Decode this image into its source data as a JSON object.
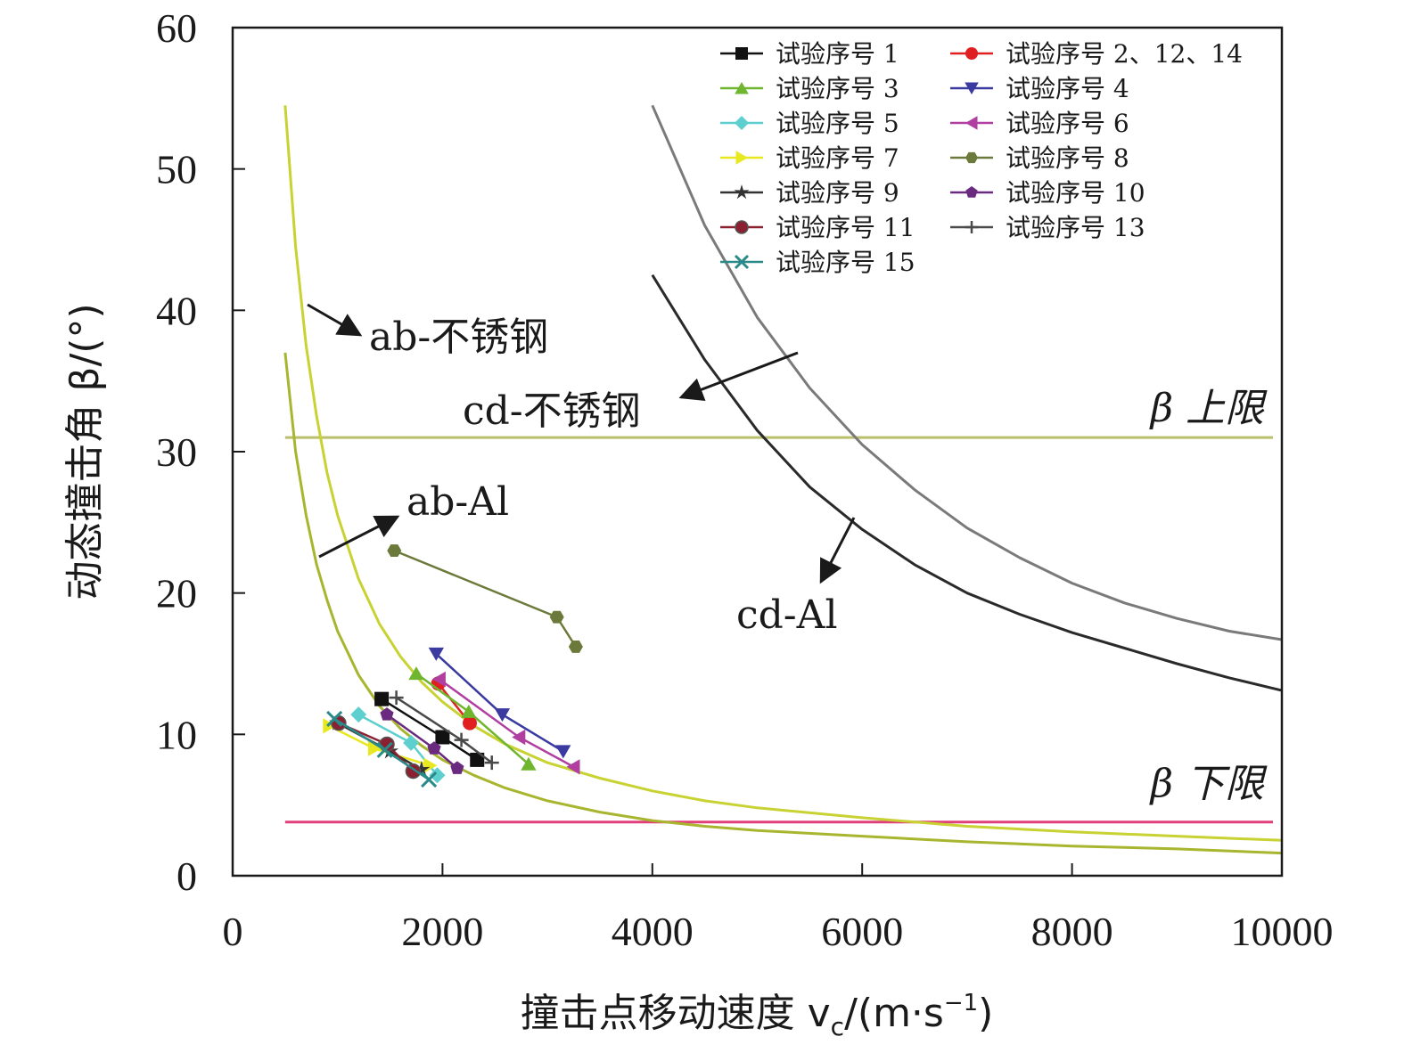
{
  "chart_data": {
    "type": "scatter",
    "xlabel": "撞击点移动速度 v",
    "xlabel_sub": "c",
    "xlabel_unit": "/(m·s",
    "xlabel_sup": "−1",
    "xlabel_close": ")",
    "ylabel": "动态撞击角 β/(°)",
    "xlim": [
      0,
      10000
    ],
    "ylim": [
      0,
      60
    ],
    "xticks": [
      0,
      2000,
      4000,
      6000,
      8000,
      10000
    ],
    "yticks": [
      0,
      10,
      20,
      30,
      40,
      50,
      60
    ],
    "xtick_labels": [
      "0",
      "2000",
      "4000",
      "6000",
      "8000",
      "10000"
    ],
    "ytick_labels": [
      "0",
      "10",
      "20",
      "30",
      "40",
      "50",
      "60"
    ],
    "grid": false,
    "legend_position": "top-right",
    "limits": [
      {
        "label": "β 上限",
        "y": 31,
        "color": "#b9bf6a"
      },
      {
        "label": "β 下限",
        "y": 3.8,
        "color": "#e0407a"
      }
    ],
    "curves": [
      {
        "label": "ab-不锈钢",
        "color": "#c8d232",
        "x": [
          500,
          600,
          700,
          800,
          900,
          1000,
          1200,
          1400,
          1600,
          1800,
          2000,
          2300,
          2600,
          3000,
          3500,
          4000,
          4500,
          5000,
          6000,
          7000,
          8000,
          9000,
          10000
        ],
        "y": [
          54.5,
          44.5,
          37.5,
          32.5,
          28.5,
          25.5,
          21,
          17.8,
          15.5,
          13.7,
          12.3,
          10.6,
          9.3,
          8,
          6.9,
          6,
          5.3,
          4.8,
          4.1,
          3.5,
          3.1,
          2.8,
          2.5
        ]
      },
      {
        "label": "ab-Al",
        "color": "#a8b52e",
        "x": [
          500,
          600,
          700,
          800,
          900,
          1000,
          1200,
          1400,
          1600,
          1800,
          2000,
          2300,
          2600,
          3000,
          3500,
          4000,
          4500,
          5000,
          6000,
          7000,
          8000,
          9000,
          10000
        ],
        "y": [
          37,
          30,
          25.5,
          22,
          19.5,
          17.3,
          14.2,
          12,
          10.4,
          9.2,
          8.2,
          7.1,
          6.2,
          5.3,
          4.5,
          3.9,
          3.5,
          3.2,
          2.8,
          2.4,
          2.1,
          1.9,
          1.6
        ]
      },
      {
        "label": "cd-不锈钢",
        "color": "#7a7a7a",
        "x": [
          4000,
          4500,
          5000,
          5500,
          6000,
          6500,
          7000,
          7500,
          8000,
          8500,
          9000,
          9500,
          10000
        ],
        "y": [
          54.5,
          46,
          39.5,
          34.5,
          30.5,
          27.3,
          24.6,
          22.5,
          20.7,
          19.3,
          18.2,
          17.3,
          16.7
        ]
      },
      {
        "label": "cd-Al",
        "color": "#2a2a2a",
        "x": [
          4000,
          4500,
          5000,
          5500,
          6000,
          6500,
          7000,
          7500,
          8000,
          8500,
          9000,
          9500,
          10000
        ],
        "y": [
          42.5,
          36.5,
          31.5,
          27.5,
          24.5,
          22,
          20,
          18.5,
          17.2,
          16.1,
          15,
          14,
          13.1
        ]
      }
    ],
    "annotations": [
      {
        "text": "ab-不锈钢"
      },
      {
        "text": "cd-不锈钢"
      },
      {
        "text": "ab-Al"
      },
      {
        "text": "cd-Al"
      }
    ],
    "series": [
      {
        "name": "试验序号 1",
        "color": "#111111",
        "marker": "square",
        "x": [
          1420,
          2000,
          2330
        ],
        "y": [
          12.5,
          9.8,
          8.2
        ]
      },
      {
        "name": "试验序号 2、12、14",
        "color": "#e02020",
        "marker": "circle",
        "x": [
          1960,
          2260
        ],
        "y": [
          13.6,
          10.8
        ]
      },
      {
        "name": "试验序号 3",
        "color": "#6fb52e",
        "marker": "triangle-up",
        "x": [
          1750,
          2250,
          2820
        ],
        "y": [
          14.3,
          11.6,
          7.9
        ]
      },
      {
        "name": "试验序号 4",
        "color": "#3a3aa0",
        "marker": "triangle-down",
        "x": [
          1940,
          2570,
          3150
        ],
        "y": [
          15.7,
          11.4,
          8.8
        ]
      },
      {
        "name": "试验序号 5",
        "color": "#5ecfcf",
        "marker": "diamond",
        "x": [
          1200,
          1700,
          1950
        ],
        "y": [
          11.4,
          9.4,
          7.1
        ]
      },
      {
        "name": "试验序号 6",
        "color": "#b03fa0",
        "marker": "triangle-left",
        "x": [
          1970,
          2730,
          3250
        ],
        "y": [
          13.9,
          9.8,
          7.7
        ]
      },
      {
        "name": "试验序号 7",
        "color": "#e8e820",
        "marker": "triangle-right",
        "x": [
          920,
          1350,
          1880
        ],
        "y": [
          10.6,
          9,
          7.8
        ]
      },
      {
        "name": "试验序号 8",
        "color": "#6b7a3a",
        "marker": "hexagon",
        "x": [
          1540,
          3090,
          3270
        ],
        "y": [
          23,
          18.3,
          16.2
        ]
      },
      {
        "name": "试验序号 9",
        "color": "#333333",
        "marker": "star",
        "x": [
          1000,
          1500,
          1800
        ],
        "y": [
          10.8,
          8.8,
          7.5
        ]
      },
      {
        "name": "试验序号 10",
        "color": "#6a2a80",
        "marker": "pentagon",
        "x": [
          1470,
          1920,
          2140
        ],
        "y": [
          11.4,
          9,
          7.6
        ]
      },
      {
        "name": "试验序号 11",
        "color": "#8a2030",
        "marker": "circle-half",
        "x": [
          1010,
          1470,
          1720
        ],
        "y": [
          10.8,
          9.3,
          7.4
        ]
      },
      {
        "name": "试验序号 13",
        "color": "#4a4a4a",
        "marker": "plus",
        "x": [
          1560,
          2180,
          2470
        ],
        "y": [
          12.6,
          9.6,
          8
        ]
      },
      {
        "name": "试验序号 15",
        "color": "#2a8a8a",
        "marker": "x",
        "x": [
          970,
          1450,
          1870
        ],
        "y": [
          11.1,
          8.9,
          6.8
        ]
      }
    ]
  }
}
